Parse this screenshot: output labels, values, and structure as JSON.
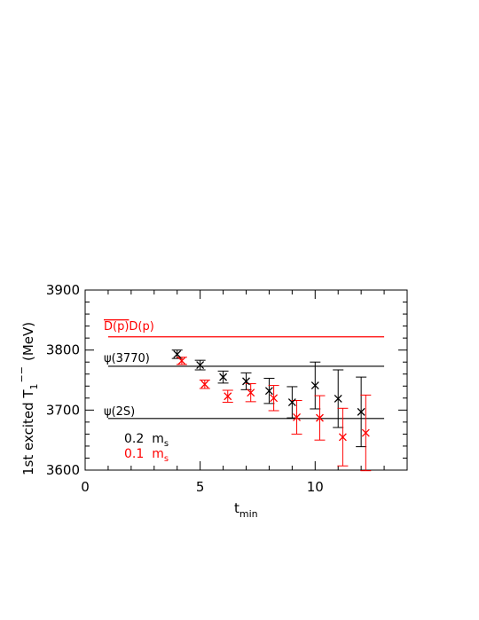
{
  "chart_data": {
    "type": "scatter",
    "x_axis": {
      "label": "t",
      "label_subscript": "min",
      "range": [
        0,
        14
      ],
      "ticks": [
        0,
        5,
        10
      ],
      "tick_labels": [
        "0",
        "5",
        "10"
      ]
    },
    "y_axis": {
      "label": "1st excited T",
      "label_subscript": "1",
      "label_superscript": "−−",
      "label_unit": "(MeV)",
      "range": [
        3600,
        3900
      ],
      "ticks": [
        3600,
        3700,
        3800,
        3900
      ],
      "tick_labels": [
        "3600",
        "3700",
        "3800",
        "3900"
      ]
    },
    "grid": false,
    "legend_position": "bottom-left",
    "reference_lines": [
      {
        "label_overline": "D(p)",
        "label_rest": "D(p)",
        "y": 3822,
        "x_range": [
          1,
          13
        ],
        "color": "#ff0000"
      },
      {
        "label": "ψ(3770)",
        "y": 3773,
        "x_range": [
          1,
          13
        ],
        "color": "#000000"
      },
      {
        "label": "ψ(2S)",
        "y": 3686,
        "x_range": [
          1,
          13
        ],
        "color": "#000000"
      }
    ],
    "series": [
      {
        "name": "0.2",
        "name_unit": "m",
        "name_unit_sub": "s",
        "color": "#000000",
        "marker": "x",
        "points": [
          {
            "x": 4,
            "y": 3793,
            "err": 7
          },
          {
            "x": 5,
            "y": 3775,
            "err": 8
          },
          {
            "x": 6,
            "y": 3755,
            "err": 10
          },
          {
            "x": 7,
            "y": 3748,
            "err": 14
          },
          {
            "x": 8,
            "y": 3732,
            "err": 21
          },
          {
            "x": 9,
            "y": 3713,
            "err": 26
          },
          {
            "x": 10,
            "y": 3741,
            "err": 39
          },
          {
            "x": 11,
            "y": 3719,
            "err": 48
          },
          {
            "x": 12,
            "y": 3697,
            "err": 58
          }
        ]
      },
      {
        "name": "0.1",
        "name_unit": "m",
        "name_unit_sub": "s",
        "color": "#ff0000",
        "marker": "x",
        "points": [
          {
            "x": 4.2,
            "y": 3782,
            "err": 6
          },
          {
            "x": 5.2,
            "y": 3743,
            "err": 7
          },
          {
            "x": 6.2,
            "y": 3723,
            "err": 10
          },
          {
            "x": 7.2,
            "y": 3729,
            "err": 15
          },
          {
            "x": 8.2,
            "y": 3720,
            "err": 21
          },
          {
            "x": 9.2,
            "y": 3688,
            "err": 28
          },
          {
            "x": 10.2,
            "y": 3687,
            "err": 37
          },
          {
            "x": 11.2,
            "y": 3655,
            "err": 48
          },
          {
            "x": 12.2,
            "y": 3662,
            "err": 63
          }
        ]
      }
    ]
  }
}
